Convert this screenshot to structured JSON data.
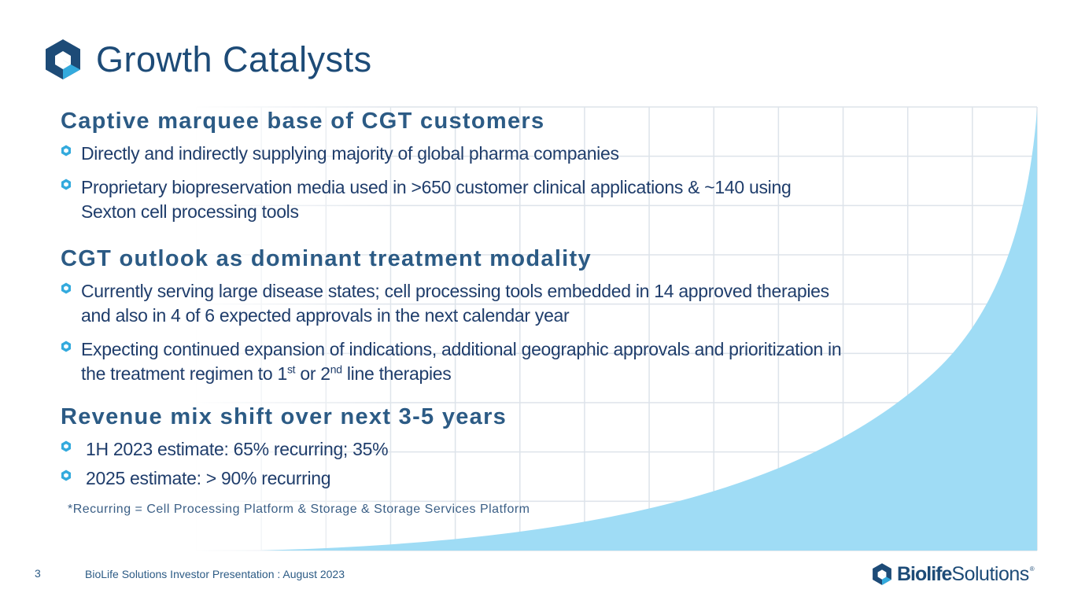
{
  "slide": {
    "title": "Growth Catalysts",
    "colors": {
      "title": "#1d4b77",
      "heading": "#2c5b85",
      "text": "#1f3d6b",
      "accent_cyan": "#33aadd",
      "curve_fill": "#9fdcf5",
      "grid": "#dde3ea"
    }
  },
  "sections": [
    {
      "heading": "Captive marquee base of CGT customers",
      "bullets": [
        {
          "text": "Directly and indirectly supplying majority of global pharma companies"
        },
        {
          "text": "Proprietary biopreservation media used in >650 customer clinical applications & ~140 using",
          "text2": "Sexton cell processing tools"
        }
      ]
    },
    {
      "heading": "CGT outlook as dominant treatment modality",
      "bullets": [
        {
          "text": "Currently serving large disease states; cell processing tools embedded in 14 approved therapies",
          "text2": "and also in 4 of 6 expected approvals in the next calendar year"
        },
        {
          "text": "Expecting continued expansion of indications, additional geographic approvals and prioritization in",
          "text2_a": "the treatment regimen to 1",
          "sup1": "st",
          "text2_b": " or 2",
          "sup2": "nd",
          "text2_c": " line therapies"
        }
      ]
    },
    {
      "heading": "Revenue mix shift over next 3-5 years",
      "bullets": [
        {
          "text": "1H 2023 estimate: 65% recurring; 35%"
        },
        {
          "text": "2025 estimate: > 90% recurring"
        }
      ]
    }
  ],
  "footnote": "*Recurring = Cell Processing Platform & Storage & Storage Services Platform",
  "footer": {
    "page_number": "3",
    "text": "BioLife Solutions Investor Presentation : August 2023",
    "brand_bold": "Biolife",
    "brand_light": "Solutions",
    "brand_reg": "®",
    "logo_icon": "biolife-hexagon-logo"
  }
}
